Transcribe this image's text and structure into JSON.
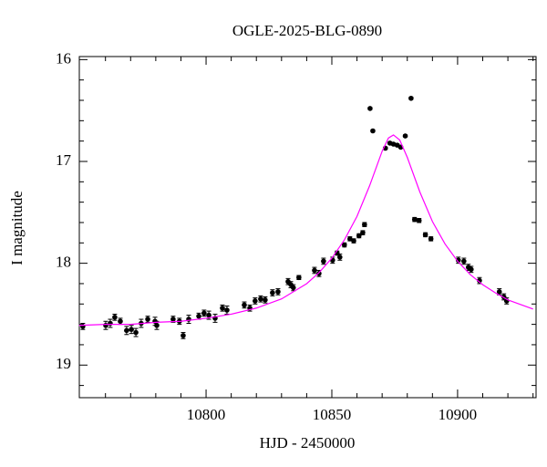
{
  "chart_data": {
    "type": "lightcurve",
    "title": "OGLE-2025-BLG-0890",
    "x_label": "HJD - 2450000",
    "y_label": "I magnitude",
    "xlim": [
      10749.6,
      10931.2
    ],
    "ylim": [
      15.97,
      19.32
    ],
    "invert_y": true,
    "xticks": [
      10800,
      10850,
      10900
    ],
    "yticks": [
      16,
      17,
      18,
      19
    ],
    "xminorticks": [
      10760,
      10770,
      10780,
      10790,
      10810,
      10820,
      10830,
      10840,
      10860,
      10870,
      10880,
      10890,
      10910,
      10920,
      10930
    ],
    "yminorticks": [
      16.2,
      16.4,
      16.6,
      16.8,
      17.2,
      17.4,
      17.6,
      17.8,
      18.2,
      18.4,
      18.6,
      18.8,
      19.2
    ],
    "series": [
      {
        "type": "errorbar",
        "color": "#000000",
        "x": [
          10751.0,
          10760.1,
          10761.9,
          10763.7,
          10765.9,
          10768.4,
          10770.3,
          10772.1,
          10774.2,
          10776.8,
          10779.7,
          10780.4,
          10786.9,
          10789.4,
          10790.9,
          10793.1,
          10797.1,
          10799.2,
          10801.1,
          10803.6,
          10806.5,
          10808.3,
          10815.2,
          10817.4,
          10819.5,
          10821.7,
          10823.5,
          10826.4,
          10828.6,
          10832.6,
          10833.7,
          10834.7,
          10836.9,
          10843.1,
          10844.9,
          10846.7,
          10850.3,
          10852.1,
          10853.2,
          10855.0,
          10857.2,
          10858.7,
          10860.8,
          10862.3,
          10863.0,
          10865.2,
          10866.3,
          10871.3,
          10873.1,
          10874.5,
          10876.0,
          10877.4,
          10879.2,
          10881.5,
          10882.9,
          10884.7,
          10887.2,
          10889.4,
          10900.3,
          10902.5,
          10904.3,
          10905.4,
          10908.7,
          10916.6,
          10918.4,
          10919.5
        ],
        "values": [
          18.62,
          18.61,
          18.59,
          18.53,
          18.57,
          18.66,
          18.65,
          18.68,
          18.59,
          18.55,
          18.57,
          18.61,
          18.55,
          18.57,
          18.71,
          18.55,
          18.52,
          18.49,
          18.51,
          18.54,
          18.44,
          18.46,
          18.41,
          18.44,
          18.37,
          18.35,
          18.36,
          18.29,
          18.28,
          18.18,
          18.21,
          18.24,
          18.14,
          18.07,
          18.1,
          17.98,
          17.97,
          17.9,
          17.94,
          17.82,
          17.76,
          17.78,
          17.73,
          17.7,
          17.62,
          16.48,
          16.7,
          16.87,
          16.82,
          16.83,
          16.84,
          16.86,
          16.75,
          16.38,
          17.57,
          17.58,
          17.72,
          17.76,
          17.97,
          17.98,
          18.04,
          18.06,
          18.17,
          18.28,
          18.33,
          18.37
        ],
        "errors": [
          0.03,
          0.04,
          0.04,
          0.03,
          0.03,
          0.04,
          0.04,
          0.04,
          0.04,
          0.03,
          0.04,
          0.04,
          0.03,
          0.03,
          0.03,
          0.04,
          0.03,
          0.03,
          0.04,
          0.04,
          0.03,
          0.04,
          0.03,
          0.03,
          0.03,
          0.03,
          0.03,
          0.03,
          0.03,
          0.03,
          0.03,
          0.03,
          0.02,
          0.03,
          0.03,
          0.03,
          0.03,
          0.02,
          0.03,
          0.02,
          0.02,
          0.02,
          0.02,
          0.02,
          0.02,
          0.01,
          0.01,
          0.01,
          0.01,
          0.01,
          0.01,
          0.01,
          0.01,
          0.01,
          0.02,
          0.02,
          0.02,
          0.02,
          0.03,
          0.03,
          0.03,
          0.03,
          0.03,
          0.03,
          0.03,
          0.03
        ]
      },
      {
        "type": "line",
        "color": "#ff00ff",
        "x": [
          10749.5,
          10760,
          10770,
          10780,
          10790,
          10800,
          10810,
          10820,
          10830,
          10840,
          10845,
          10850,
          10855,
          10860,
          10865,
          10870,
          10872.5,
          10874.5,
          10877,
          10880,
          10885,
          10890,
          10895,
          10900,
          10905,
          10910,
          10915,
          10920,
          10930
        ],
        "values": [
          18.61,
          18.6,
          18.6,
          18.58,
          18.57,
          18.54,
          18.5,
          18.44,
          18.35,
          18.2,
          18.09,
          17.95,
          17.77,
          17.54,
          17.24,
          16.9,
          16.77,
          16.74,
          16.79,
          16.96,
          17.3,
          17.59,
          17.81,
          17.98,
          18.11,
          18.21,
          18.29,
          18.36,
          18.45
        ]
      }
    ]
  }
}
